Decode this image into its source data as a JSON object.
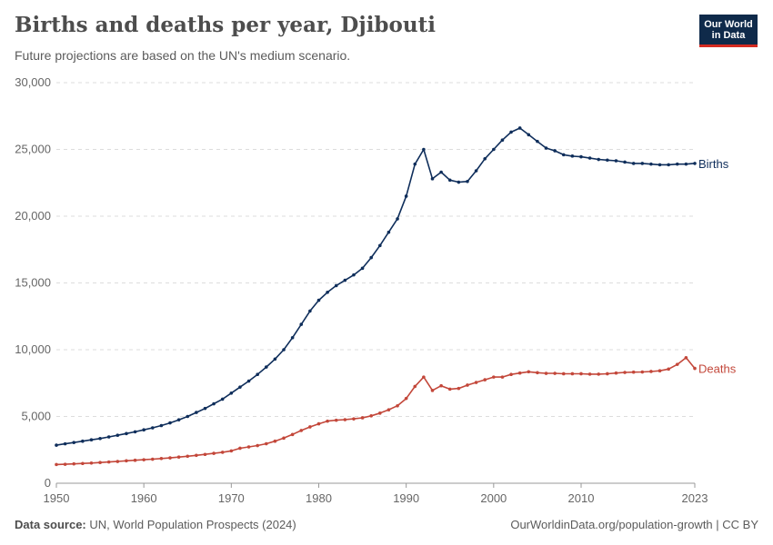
{
  "header": {
    "title": "Births and deaths per year, Djibouti",
    "subtitle": "Future projections are based on the UN's medium scenario.",
    "logo_line1": "Our World",
    "logo_line2": "in Data"
  },
  "footer": {
    "source_label": "Data source:",
    "source_text": "UN, World Population Prospects (2024)",
    "url": "OurWorldinData.org/population-growth | CC BY"
  },
  "chart_data": {
    "type": "line",
    "title": "Births and deaths per year, Djibouti",
    "xlim": [
      1950,
      2023
    ],
    "ylim": [
      0,
      30000
    ],
    "x_ticks": [
      1950,
      1960,
      1970,
      1980,
      1990,
      2000,
      2010,
      2023
    ],
    "y_ticks": [
      0,
      5000,
      10000,
      15000,
      20000,
      25000,
      30000
    ],
    "y_tick_labels": [
      "0",
      "5,000",
      "10,000",
      "15,000",
      "20,000",
      "25,000",
      "30,000"
    ],
    "grid": "horizontal dashed",
    "x": [
      1950,
      1951,
      1952,
      1953,
      1954,
      1955,
      1956,
      1957,
      1958,
      1959,
      1960,
      1961,
      1962,
      1963,
      1964,
      1965,
      1966,
      1967,
      1968,
      1969,
      1970,
      1971,
      1972,
      1973,
      1974,
      1975,
      1976,
      1977,
      1978,
      1979,
      1980,
      1981,
      1982,
      1983,
      1984,
      1985,
      1986,
      1987,
      1988,
      1989,
      1990,
      1991,
      1992,
      1993,
      1994,
      1995,
      1996,
      1997,
      1998,
      1999,
      2000,
      2001,
      2002,
      2003,
      2004,
      2005,
      2006,
      2007,
      2008,
      2009,
      2010,
      2011,
      2012,
      2013,
      2014,
      2015,
      2016,
      2017,
      2018,
      2019,
      2020,
      2021,
      2022,
      2023
    ],
    "series": [
      {
        "name": "Births",
        "color": "#0f2e5b",
        "values": [
          2850,
          2950,
          3050,
          3150,
          3250,
          3350,
          3470,
          3590,
          3720,
          3850,
          4000,
          4150,
          4320,
          4520,
          4750,
          5000,
          5300,
          5600,
          5950,
          6300,
          6750,
          7200,
          7650,
          8150,
          8700,
          9300,
          10000,
          10900,
          11900,
          12900,
          13700,
          14300,
          14800,
          15200,
          15600,
          16100,
          16900,
          17800,
          18800,
          19800,
          21500,
          23900,
          25000,
          22800,
          23300,
          22700,
          22550,
          22600,
          23400,
          24300,
          25000,
          25700,
          26300,
          26600,
          26100,
          25600,
          25100,
          24900,
          24600,
          24500,
          24450,
          24350,
          24250,
          24200,
          24150,
          24050,
          23950,
          23950,
          23900,
          23850,
          23850,
          23900,
          23900,
          23950
        ]
      },
      {
        "name": "Deaths",
        "color": "#c3473a",
        "values": [
          1400,
          1420,
          1450,
          1480,
          1510,
          1550,
          1590,
          1630,
          1680,
          1720,
          1760,
          1800,
          1850,
          1900,
          1960,
          2020,
          2090,
          2160,
          2240,
          2320,
          2420,
          2620,
          2720,
          2820,
          2960,
          3150,
          3380,
          3650,
          3950,
          4220,
          4450,
          4650,
          4720,
          4760,
          4820,
          4900,
          5050,
          5250,
          5500,
          5800,
          6350,
          7250,
          7950,
          6950,
          7300,
          7050,
          7100,
          7350,
          7550,
          7750,
          7950,
          7950,
          8150,
          8250,
          8350,
          8280,
          8230,
          8230,
          8200,
          8200,
          8200,
          8170,
          8170,
          8200,
          8250,
          8300,
          8320,
          8330,
          8370,
          8420,
          8550,
          8900,
          9400,
          8600
        ]
      }
    ]
  }
}
